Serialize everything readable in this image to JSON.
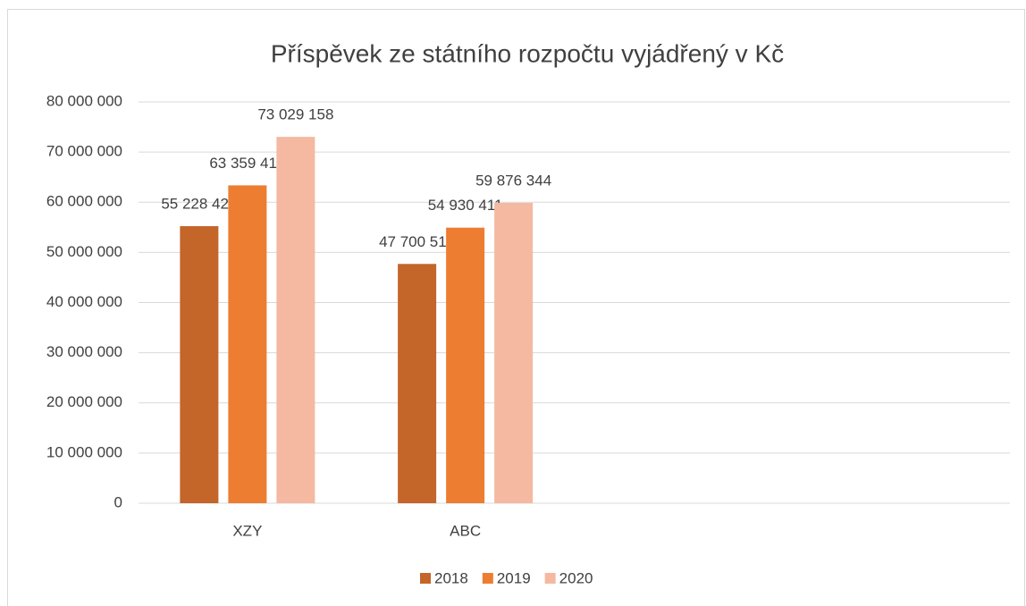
{
  "chart_data": {
    "type": "bar",
    "title": "Příspěvek ze státního rozpočtu vyjádřený v Kč",
    "categories": [
      "XZY",
      "ABC",
      null,
      null
    ],
    "series": [
      {
        "name": "2018",
        "color": "#c4652a",
        "values": [
          55228424,
          47700512,
          null,
          null
        ],
        "value_labels": [
          "55 228 424",
          "47 700 512",
          null,
          null
        ]
      },
      {
        "name": "2019",
        "color": "#ed7d31",
        "values": [
          63359419,
          54930411,
          null,
          null
        ],
        "value_labels": [
          "63 359 419",
          "54 930 411",
          null,
          null
        ]
      },
      {
        "name": "2020",
        "color": "#f4b9a0",
        "values": [
          73029158,
          59876344,
          null,
          null
        ],
        "value_labels": [
          "73 029 158",
          "59 876 344",
          null,
          null
        ]
      }
    ],
    "ylim": [
      0,
      80000000
    ],
    "yticks": [
      {
        "value": 0,
        "label": "0"
      },
      {
        "value": 10000000,
        "label": "10 000 000"
      },
      {
        "value": 20000000,
        "label": "20 000 000"
      },
      {
        "value": 30000000,
        "label": "30 000 000"
      },
      {
        "value": 40000000,
        "label": "40 000 000"
      },
      {
        "value": 50000000,
        "label": "50 000 000"
      },
      {
        "value": 60000000,
        "label": "60 000 000"
      },
      {
        "value": 70000000,
        "label": "70 000 000"
      },
      {
        "value": 80000000,
        "label": "80 000 000"
      }
    ],
    "grid": true,
    "legend": "bottom"
  }
}
